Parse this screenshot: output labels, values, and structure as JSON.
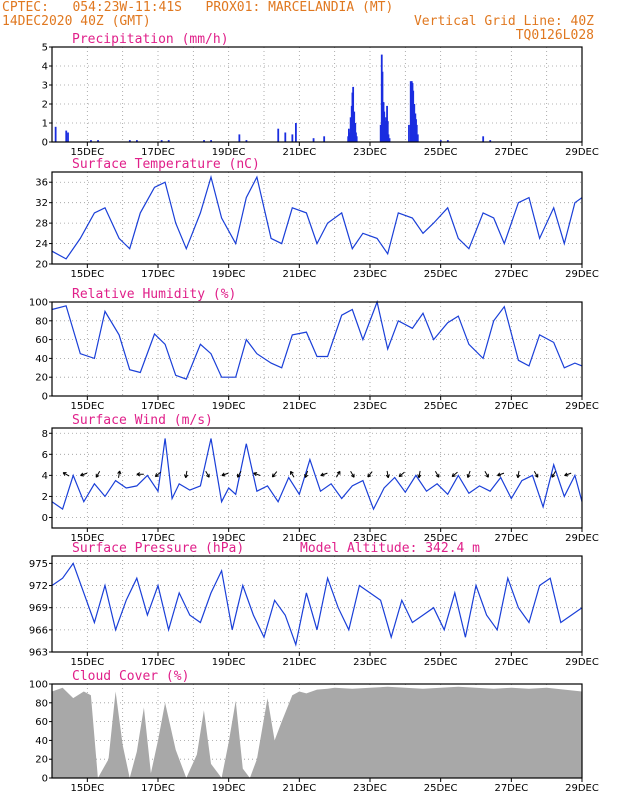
{
  "header": {
    "line1": "CPTEC:   054:23W-11:41S   PROX01: MARCELANDIA (MT)",
    "line2": "14DEC2020 40Z (GMT)",
    "grid_note": "Vertical Grid Line: 40Z",
    "code": "TQ0126L028"
  },
  "date_labels": [
    "15DEC",
    "17DEC",
    "19DEC",
    "21DEC",
    "23DEC",
    "25DEC",
    "27DEC",
    "29DEC"
  ],
  "chart_data": [
    {
      "type": "bar",
      "title": "Precipitation (mm/h)",
      "ylim": [
        0,
        5
      ],
      "yticks": [
        0,
        1,
        2,
        3,
        4,
        5
      ],
      "color": "#1a2de0",
      "x_day_range": [
        0,
        15
      ],
      "points": [
        [
          0.1,
          0.8
        ],
        [
          0.4,
          0.6
        ],
        [
          0.45,
          0.5
        ],
        [
          1.1,
          0.1
        ],
        [
          1.3,
          0.1
        ],
        [
          2.2,
          0.1
        ],
        [
          2.4,
          0.1
        ],
        [
          3.1,
          0.1
        ],
        [
          3.3,
          0.1
        ],
        [
          4.3,
          0.1
        ],
        [
          4.5,
          0.1
        ],
        [
          5.3,
          0.4
        ],
        [
          5.5,
          0.1
        ],
        [
          6.4,
          0.7
        ],
        [
          6.6,
          0.5
        ],
        [
          6.8,
          0.4
        ],
        [
          6.9,
          1.0
        ],
        [
          7.4,
          0.2
        ],
        [
          7.7,
          0.3
        ],
        [
          8.5,
          2.6
        ],
        [
          8.52,
          2.9
        ],
        [
          8.48,
          1.9
        ],
        [
          8.45,
          1.3
        ],
        [
          8.55,
          1.6
        ],
        [
          8.58,
          1.0
        ],
        [
          8.4,
          0.7
        ],
        [
          8.42,
          0.5
        ],
        [
          8.38,
          0.3
        ],
        [
          8.6,
          0.5
        ],
        [
          8.62,
          0.3
        ],
        [
          9.3,
          0.9
        ],
        [
          9.33,
          4.6
        ],
        [
          9.35,
          3.7
        ],
        [
          9.38,
          2.1
        ],
        [
          9.4,
          1.6
        ],
        [
          9.42,
          1.1
        ],
        [
          9.45,
          1.3
        ],
        [
          9.48,
          1.9
        ],
        [
          9.5,
          1.1
        ],
        [
          9.52,
          0.4
        ],
        [
          9.55,
          0.2
        ],
        [
          10.1,
          0.9
        ],
        [
          10.15,
          3.2
        ],
        [
          10.18,
          3.2
        ],
        [
          10.2,
          3.1
        ],
        [
          10.22,
          2.7
        ],
        [
          10.25,
          2.0
        ],
        [
          10.28,
          1.5
        ],
        [
          10.3,
          1.2
        ],
        [
          10.32,
          0.9
        ],
        [
          10.35,
          0.4
        ],
        [
          11.0,
          0.1
        ],
        [
          11.2,
          0.1
        ],
        [
          12.2,
          0.3
        ],
        [
          12.4,
          0.1
        ]
      ]
    },
    {
      "type": "line",
      "title": "Surface Temperature (nC)",
      "ylim": [
        20,
        38
      ],
      "yticks": [
        20,
        24,
        28,
        32,
        36
      ],
      "color": "#1a3fd8",
      "x_day_range": [
        0,
        15
      ],
      "x": [
        0,
        0.4,
        0.8,
        1.2,
        1.5,
        1.9,
        2.2,
        2.5,
        2.9,
        3.2,
        3.5,
        3.8,
        4.2,
        4.5,
        4.8,
        5.2,
        5.5,
        5.8,
        6.2,
        6.5,
        6.8,
        7.2,
        7.5,
        7.8,
        8.2,
        8.5,
        8.8,
        9.2,
        9.5,
        9.8,
        10.2,
        10.5,
        10.8,
        11.2,
        11.5,
        11.8,
        12.2,
        12.5,
        12.8,
        13.2,
        13.5,
        13.8,
        14.2,
        14.5,
        14.8,
        15
      ],
      "y": [
        22.5,
        21,
        25,
        30,
        31,
        25,
        23,
        30,
        35,
        36,
        28,
        23,
        30,
        37,
        29,
        24,
        33,
        37,
        25,
        24,
        31,
        30,
        24,
        28,
        30,
        23,
        26,
        25,
        22,
        30,
        29,
        26,
        28,
        31,
        25,
        23,
        30,
        29,
        24,
        32,
        33,
        25,
        31,
        24,
        32,
        33
      ]
    },
    {
      "type": "line",
      "title": "Relative Humidity (%)",
      "ylim": [
        0,
        100
      ],
      "yticks": [
        0,
        20,
        40,
        60,
        80,
        100
      ],
      "color": "#1a3fd8",
      "x_day_range": [
        0,
        15
      ],
      "x": [
        0,
        0.4,
        0.8,
        1.2,
        1.5,
        1.9,
        2.2,
        2.5,
        2.9,
        3.2,
        3.5,
        3.8,
        4.2,
        4.5,
        4.8,
        5.2,
        5.5,
        5.8,
        6.2,
        6.5,
        6.8,
        7.2,
        7.5,
        7.8,
        8.2,
        8.5,
        8.8,
        9.2,
        9.5,
        9.8,
        10.2,
        10.5,
        10.8,
        11.2,
        11.5,
        11.8,
        12.2,
        12.5,
        12.8,
        13.2,
        13.5,
        13.8,
        14.2,
        14.5,
        14.8,
        15
      ],
      "y": [
        92,
        96,
        45,
        40,
        90,
        65,
        28,
        25,
        66,
        55,
        22,
        18,
        55,
        45,
        20,
        20,
        60,
        45,
        35,
        30,
        65,
        68,
        42,
        42,
        86,
        92,
        60,
        100,
        50,
        80,
        72,
        88,
        60,
        78,
        85,
        55,
        40,
        80,
        95,
        38,
        32,
        65,
        57,
        30,
        35,
        32
      ]
    },
    {
      "type": "line",
      "title": "Surface Wind (m/s)",
      "ylim": [
        -1,
        8.5
      ],
      "yticks": [
        0,
        2,
        4,
        6,
        8
      ],
      "color": "#1a3fd8",
      "x_day_range": [
        0,
        15
      ],
      "x": [
        0,
        0.3,
        0.6,
        0.9,
        1.2,
        1.5,
        1.8,
        2.1,
        2.4,
        2.7,
        3.0,
        3.2,
        3.4,
        3.6,
        3.9,
        4.2,
        4.5,
        4.8,
        5.0,
        5.2,
        5.5,
        5.8,
        6.1,
        6.4,
        6.7,
        7.0,
        7.3,
        7.6,
        7.9,
        8.2,
        8.5,
        8.8,
        9.1,
        9.4,
        9.7,
        10.0,
        10.3,
        10.6,
        10.9,
        11.2,
        11.5,
        11.8,
        12.1,
        12.4,
        12.7,
        13.0,
        13.3,
        13.6,
        13.9,
        14.2,
        14.5,
        14.8,
        15
      ],
      "y": [
        1.5,
        0.8,
        4.0,
        1.5,
        3.2,
        2.0,
        3.5,
        2.8,
        3.0,
        4.0,
        2.5,
        7.5,
        1.8,
        3.2,
        2.6,
        3.0,
        7.5,
        1.5,
        2.8,
        2.2,
        7.0,
        2.5,
        3.0,
        1.5,
        3.8,
        2.2,
        5.5,
        2.5,
        3.2,
        1.8,
        3.0,
        3.5,
        0.8,
        2.8,
        3.8,
        2.4,
        4.0,
        2.5,
        3.2,
        2.2,
        4.0,
        2.3,
        3.0,
        2.5,
        3.8,
        1.8,
        3.5,
        4.0,
        1.0,
        5.0,
        2.0,
        4.0,
        1.5
      ],
      "arrows_x": [
        0.4,
        0.9,
        1.3,
        1.9,
        2.5,
        3.0,
        3.8,
        4.4,
        4.9,
        5.3,
        5.8,
        6.3,
        6.8,
        7.2,
        7.7,
        8.1,
        8.5,
        9.0,
        9.5,
        9.9,
        10.4,
        10.9,
        11.4,
        11.8,
        12.3,
        12.7,
        13.2,
        13.7,
        14.2,
        14.6
      ],
      "arrows_dir": [
        150,
        200,
        240,
        80,
        180,
        220,
        260,
        300,
        200,
        240,
        160,
        230,
        120,
        250,
        200,
        60,
        300,
        230,
        280,
        220,
        260,
        300,
        220,
        250,
        300,
        200,
        260,
        300,
        240,
        200
      ]
    },
    {
      "type": "line",
      "title": "Surface Pressure (hPa)",
      "annotation": "Model Altitude: 342.4 m",
      "ylim": [
        963,
        976
      ],
      "yticks": [
        963,
        966,
        969,
        972,
        975
      ],
      "color": "#1a3fd8",
      "x_day_range": [
        0,
        15
      ],
      "x": [
        0,
        0.3,
        0.6,
        0.9,
        1.2,
        1.5,
        1.8,
        2.1,
        2.4,
        2.7,
        3.0,
        3.3,
        3.6,
        3.9,
        4.2,
        4.5,
        4.8,
        5.1,
        5.4,
        5.7,
        6.0,
        6.3,
        6.6,
        6.9,
        7.2,
        7.5,
        7.8,
        8.1,
        8.4,
        8.7,
        9.0,
        9.3,
        9.6,
        9.9,
        10.2,
        10.5,
        10.8,
        11.1,
        11.4,
        11.7,
        12.0,
        12.3,
        12.6,
        12.9,
        13.2,
        13.5,
        13.8,
        14.1,
        14.4,
        14.7,
        15
      ],
      "y": [
        972,
        973,
        975,
        971,
        967,
        972,
        966,
        970,
        973,
        968,
        972,
        966,
        971,
        968,
        967,
        971,
        974,
        966,
        972,
        968,
        965,
        970,
        968,
        964,
        971,
        966,
        973,
        969,
        966,
        972,
        971,
        970,
        965,
        970,
        967,
        968,
        969,
        966,
        971,
        965,
        972,
        968,
        966,
        973,
        969,
        967,
        972,
        973,
        967,
        968,
        969
      ]
    },
    {
      "type": "area",
      "title": "Cloud Cover (%)",
      "ylim": [
        0,
        100
      ],
      "yticks": [
        0,
        20,
        40,
        60,
        80,
        100
      ],
      "color": "#a8a8a8",
      "x_day_range": [
        0,
        15
      ],
      "x": [
        0,
        0.3,
        0.6,
        0.9,
        1.1,
        1.3,
        1.6,
        1.8,
        2.0,
        2.2,
        2.4,
        2.6,
        2.8,
        3.0,
        3.2,
        3.5,
        3.8,
        4.1,
        4.3,
        4.5,
        4.8,
        5.0,
        5.2,
        5.4,
        5.6,
        5.8,
        6.1,
        6.3,
        6.5,
        6.8,
        7.0,
        7.2,
        7.5,
        7.8,
        8.0,
        8.5,
        9.0,
        9.5,
        10.0,
        10.5,
        11.0,
        11.5,
        12.0,
        12.5,
        13.0,
        13.5,
        14.0,
        14.5,
        15
      ],
      "y": [
        92,
        96,
        85,
        92,
        88,
        0,
        20,
        92,
        35,
        0,
        28,
        75,
        5,
        40,
        80,
        30,
        0,
        25,
        72,
        15,
        0,
        38,
        82,
        10,
        0,
        20,
        85,
        40,
        60,
        88,
        92,
        90,
        94,
        95,
        96,
        95,
        96,
        97,
        96,
        95,
        96,
        97,
        96,
        95,
        96,
        95,
        96,
        94,
        92
      ]
    }
  ]
}
